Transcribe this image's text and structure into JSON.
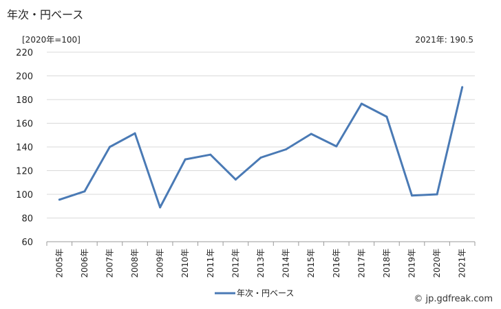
{
  "header": {
    "title": "年次・円ベース",
    "unit_label": "[2020年=100]",
    "latest_value": "2021年: 190.5"
  },
  "footer": {
    "credit": "© jp.gdfreak.com"
  },
  "colors": {
    "series": "#4a7ab5",
    "grid": "#d9d9d9",
    "axis": "#999999"
  },
  "chart_data": {
    "type": "line",
    "title": "",
    "xlabel": "",
    "ylabel": "",
    "categories": [
      "2005年",
      "2006年",
      "2007年",
      "2008年",
      "2009年",
      "2010年",
      "2011年",
      "2012年",
      "2013年",
      "2014年",
      "2015年",
      "2016年",
      "2017年",
      "2018年",
      "2019年",
      "2020年",
      "2021年"
    ],
    "series": [
      {
        "name": "年次・円ベース",
        "values": [
          95.5,
          102.5,
          140,
          151.5,
          89,
          129.5,
          133.5,
          112.5,
          131,
          138,
          151,
          140.5,
          176.5,
          165.5,
          99,
          100,
          190.5
        ]
      }
    ],
    "ylim": [
      60,
      220
    ],
    "yticks": [
      60,
      80,
      100,
      120,
      140,
      160,
      180,
      200,
      220
    ],
    "grid": true,
    "legend_position": "bottom"
  }
}
